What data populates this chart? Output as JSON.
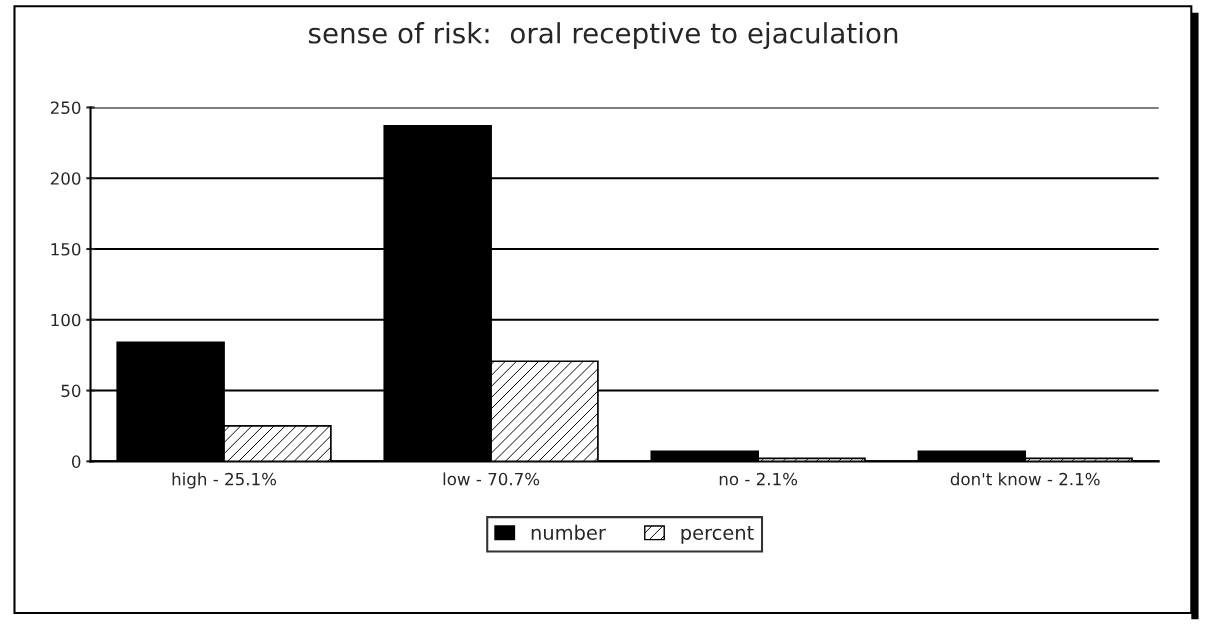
{
  "chart_data": {
    "type": "bar",
    "title": "sense of risk:  oral receptive to ejaculation",
    "categories": [
      "high - 25.1%",
      "low - 70.7%",
      "no - 2.1%",
      "don't know - 2.1%"
    ],
    "series": [
      {
        "name": "number",
        "color": "#000000",
        "values": [
          84,
          237,
          7,
          7
        ]
      },
      {
        "name": "percent",
        "color": "#000000",
        "values": [
          25.1,
          70.7,
          2.1,
          2.1
        ]
      }
    ],
    "ylim": [
      0,
      250
    ],
    "yticks": [
      0,
      50,
      100,
      150,
      200,
      250
    ],
    "grid": "y",
    "legend": "bottom"
  }
}
